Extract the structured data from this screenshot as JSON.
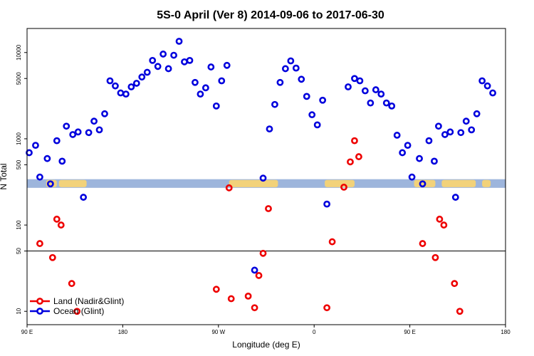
{
  "chart_data": {
    "type": "scatter",
    "title": "5S-0 April (Ver 8)   2014-09-06 to 2017-06-30",
    "xlabel": "Longitude (deg E)",
    "ylabel": "N Total",
    "x_ticks": [
      {
        "pos": 0,
        "label": "90 E"
      },
      {
        "pos": 90,
        "label": "180"
      },
      {
        "pos": 180,
        "label": "90 W"
      },
      {
        "pos": 270,
        "label": "0"
      },
      {
        "pos": 360,
        "label": "90 E"
      },
      {
        "pos": 450,
        "label": "180"
      }
    ],
    "y_ticks": [
      10,
      50,
      100,
      500,
      1000,
      5000,
      10000
    ],
    "y_scale": "log",
    "ylim": [
      7,
      19000
    ],
    "xlim": [
      0,
      450
    ],
    "reference_line_y": 50,
    "band": {
      "y_low": 270,
      "y_high": 340,
      "color": "#9db5dc",
      "land_color": "#f2d27a"
    },
    "legend": {
      "position": "bottom-left",
      "entries": [
        {
          "name": "Land (Nadir&Glint)",
          "color": "#ee0000"
        },
        {
          "name": "Ocean (Glint)",
          "color": "#0000dd"
        }
      ]
    },
    "series": [
      {
        "name": "Land (Nadir&Glint)",
        "color": "#ee0000",
        "points": [
          [
            12,
            61
          ],
          [
            24,
            42
          ],
          [
            28,
            117
          ],
          [
            32,
            100
          ],
          [
            42,
            21
          ],
          [
            47,
            10
          ],
          [
            190,
            270
          ],
          [
            178,
            18
          ],
          [
            192,
            14
          ],
          [
            208,
            15
          ],
          [
            214,
            11
          ],
          [
            218,
            26
          ],
          [
            222,
            47
          ],
          [
            227,
            155
          ],
          [
            282,
            11
          ],
          [
            287,
            64
          ],
          [
            298,
            275
          ],
          [
            304,
            540
          ],
          [
            308,
            950
          ],
          [
            312,
            620
          ],
          [
            372,
            61
          ],
          [
            384,
            42
          ],
          [
            388,
            117
          ],
          [
            392,
            100
          ],
          [
            402,
            21
          ],
          [
            407,
            10
          ]
        ]
      },
      {
        "name": "Ocean (Glint)",
        "color": "#0000dd",
        "points": [
          [
            2,
            690
          ],
          [
            8,
            840
          ],
          [
            12,
            360
          ],
          [
            19,
            590
          ],
          [
            22,
            300
          ],
          [
            28,
            950
          ],
          [
            33,
            550
          ],
          [
            37,
            1400
          ],
          [
            43,
            1120
          ],
          [
            48,
            1200
          ],
          [
            53,
            210
          ],
          [
            58,
            1180
          ],
          [
            63,
            1600
          ],
          [
            68,
            1270
          ],
          [
            73,
            1950
          ],
          [
            78,
            4700
          ],
          [
            83,
            4100
          ],
          [
            88,
            3400
          ],
          [
            93,
            3300
          ],
          [
            98,
            4000
          ],
          [
            103,
            4400
          ],
          [
            108,
            5200
          ],
          [
            113,
            5900
          ],
          [
            118,
            8100
          ],
          [
            123,
            6900
          ],
          [
            128,
            9600
          ],
          [
            133,
            6500
          ],
          [
            138,
            9300
          ],
          [
            143,
            13500
          ],
          [
            148,
            7800
          ],
          [
            153,
            8100
          ],
          [
            158,
            4500
          ],
          [
            163,
            3300
          ],
          [
            168,
            3900
          ],
          [
            173,
            6800
          ],
          [
            178,
            2400
          ],
          [
            183,
            4700
          ],
          [
            188,
            7100
          ],
          [
            214,
            30
          ],
          [
            222,
            350
          ],
          [
            228,
            1300
          ],
          [
            233,
            2500
          ],
          [
            238,
            4500
          ],
          [
            243,
            6500
          ],
          [
            248,
            8000
          ],
          [
            253,
            6600
          ],
          [
            258,
            4900
          ],
          [
            263,
            3100
          ],
          [
            268,
            1900
          ],
          [
            273,
            1450
          ],
          [
            278,
            2800
          ],
          [
            282,
            175
          ],
          [
            302,
            4000
          ],
          [
            308,
            5000
          ],
          [
            313,
            4700
          ],
          [
            318,
            3600
          ],
          [
            323,
            2600
          ],
          [
            328,
            3700
          ],
          [
            333,
            3300
          ],
          [
            338,
            2600
          ],
          [
            343,
            2400
          ],
          [
            348,
            1100
          ],
          [
            353,
            690
          ],
          [
            358,
            840
          ],
          [
            362,
            360
          ],
          [
            369,
            590
          ],
          [
            372,
            300
          ],
          [
            378,
            950
          ],
          [
            383,
            550
          ],
          [
            387,
            1400
          ],
          [
            393,
            1120
          ],
          [
            398,
            1200
          ],
          [
            403,
            210
          ],
          [
            408,
            1180
          ],
          [
            413,
            1600
          ],
          [
            418,
            1270
          ],
          [
            423,
            1950
          ],
          [
            428,
            4700
          ],
          [
            433,
            4100
          ],
          [
            438,
            3400
          ]
        ]
      }
    ]
  }
}
